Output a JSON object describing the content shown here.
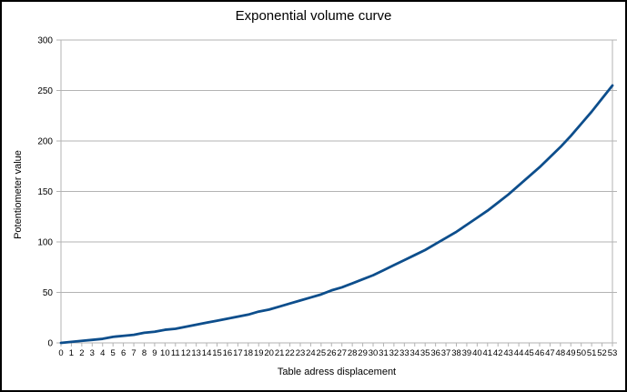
{
  "chart_data": {
    "type": "line",
    "title": "Exponential volume curve",
    "xlabel": "Table adress displacement",
    "ylabel": "Potentiometer value",
    "categories": [
      "0",
      "1",
      "2",
      "3",
      "4",
      "5",
      "6",
      "7",
      "8",
      "9",
      "10",
      "11",
      "12",
      "13",
      "14",
      "15",
      "16",
      "17",
      "18",
      "19",
      "20",
      "21",
      "22",
      "23",
      "24",
      "25",
      "26",
      "27",
      "28",
      "29",
      "30",
      "31",
      "32",
      "33",
      "34",
      "35",
      "36",
      "37",
      "38",
      "39",
      "40",
      "41",
      "42",
      "43",
      "44",
      "45",
      "46",
      "47",
      "48",
      "49",
      "50",
      "51",
      "52",
      "53"
    ],
    "values": [
      0,
      1,
      2,
      3,
      4,
      6,
      7,
      8,
      10,
      11,
      13,
      14,
      16,
      18,
      20,
      22,
      24,
      26,
      28,
      31,
      33,
      36,
      39,
      42,
      45,
      48,
      52,
      55,
      59,
      63,
      67,
      72,
      77,
      82,
      87,
      92,
      98,
      104,
      110,
      117,
      124,
      131,
      139,
      147,
      156,
      165,
      174,
      184,
      194,
      205,
      217,
      229,
      242,
      255
    ],
    "ylim": [
      0,
      300
    ],
    "yticks": [
      0,
      50,
      100,
      150,
      200,
      250,
      300
    ],
    "grid": "horizontal",
    "legend": "none",
    "line_color": "#0d4e8c",
    "grid_color": "#b3b3b3",
    "axis_color": "#b3b3b3",
    "text_color": "#000000",
    "background_color": "#ffffff",
    "border_color": "#000000"
  }
}
